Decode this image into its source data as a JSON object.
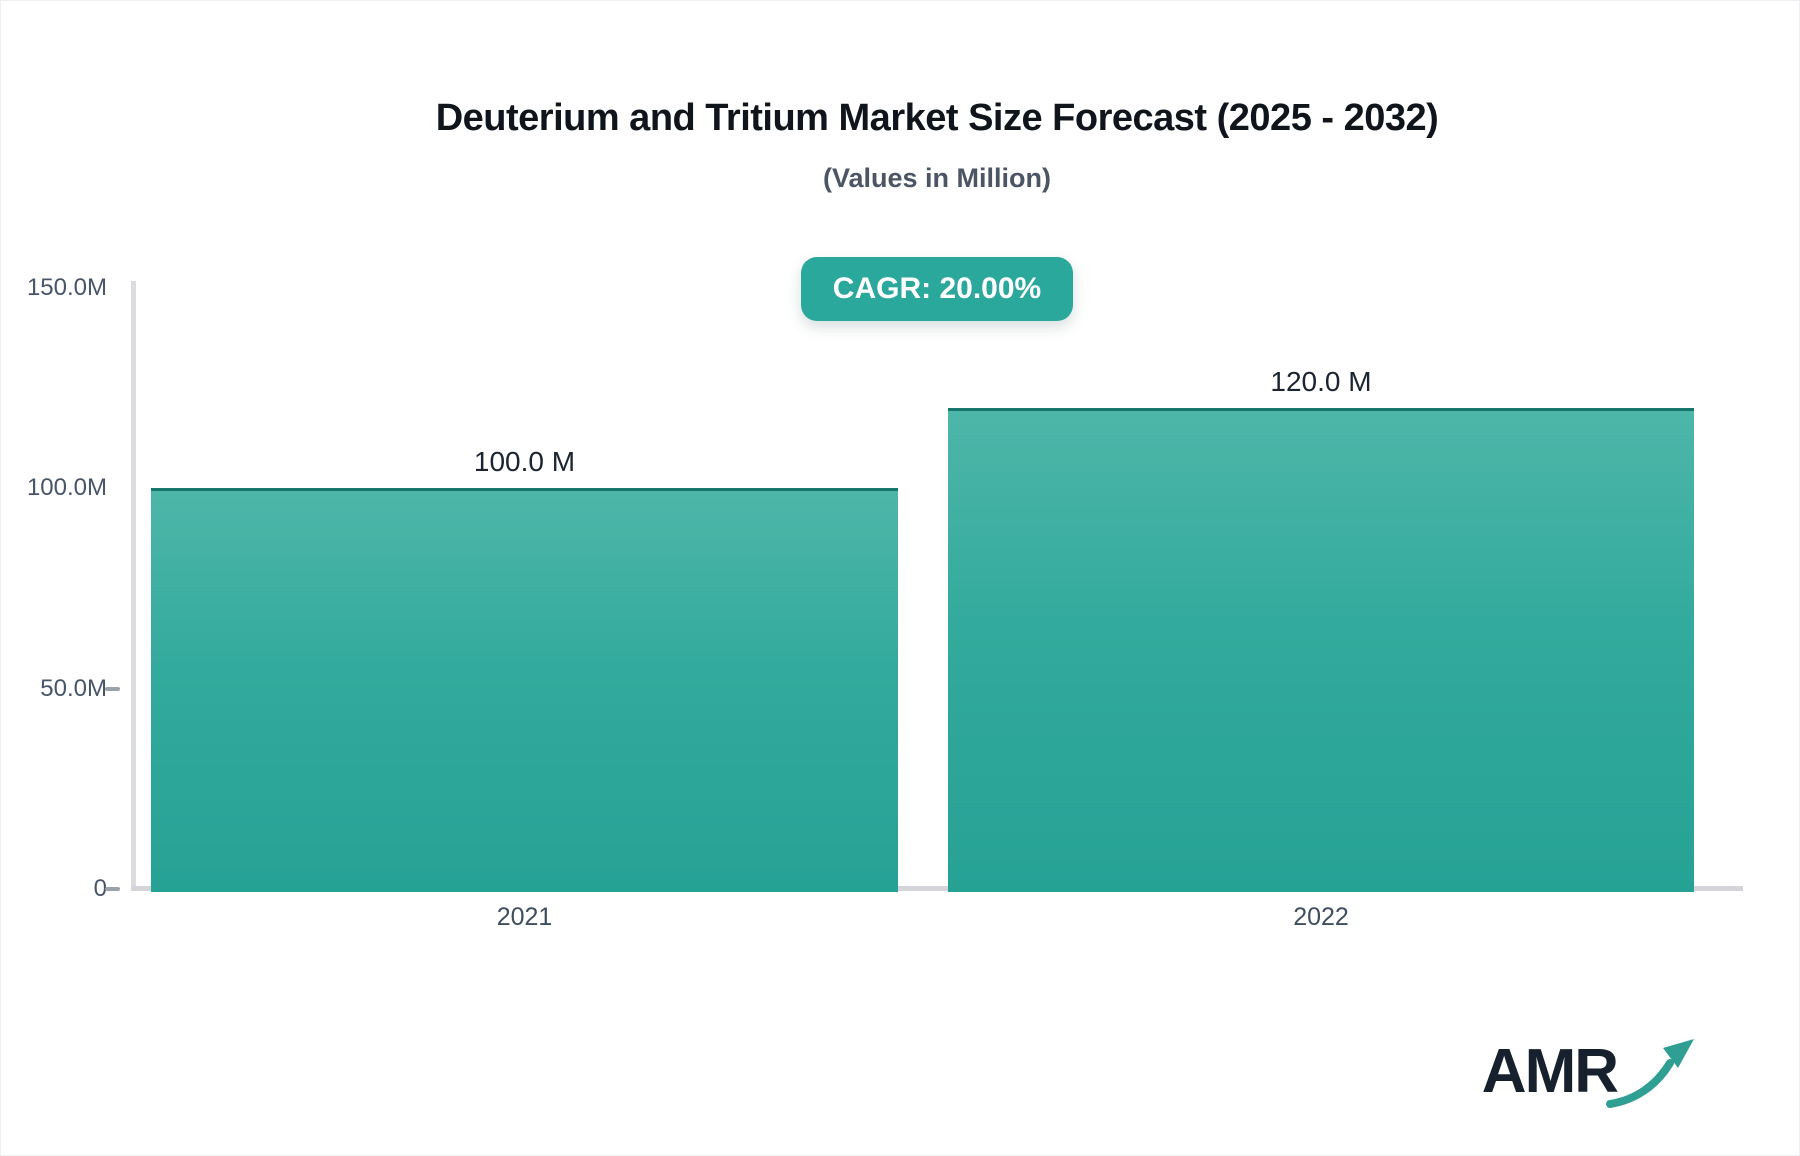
{
  "header": {
    "title": "Deuterium and Tritium Market Size Forecast (2025 - 2032)",
    "subtitle": "(Values in Million)",
    "cagr_badge": "CAGR: 20.00%"
  },
  "chart_data": {
    "type": "bar",
    "title": "Deuterium and Tritium Market Size Forecast (2025 - 2032)",
    "subtitle": "(Values in Million)",
    "categories": [
      "2021",
      "2022"
    ],
    "values": [
      100.0,
      120.0
    ],
    "bar_labels": [
      "100.0 M",
      "120.0 M"
    ],
    "cagr_percent": "20.00%",
    "xlabel": "",
    "ylabel": "",
    "ylim": [
      0,
      150
    ],
    "yticks": [
      {
        "value": 150,
        "label": "150.0M",
        "dash": false
      },
      {
        "value": 100,
        "label": "100.0M",
        "dash": false
      },
      {
        "value": 50,
        "label": "50.0M",
        "dash": true
      },
      {
        "value": 0,
        "label": "0",
        "dash": true
      }
    ],
    "grid": false,
    "legend": null,
    "colors": {
      "bar_top": "#4db6a9",
      "bar_bottom": "#26a295",
      "bar_edge": "#0d544d",
      "axis_line": "#d3d5da",
      "tick_text": "#475569",
      "badge_bg": "#2aa89b",
      "badge_text": "#ffffff"
    }
  },
  "footer": {
    "logo_text": "AMR",
    "logo_arrow_color": "#2f9f94"
  }
}
